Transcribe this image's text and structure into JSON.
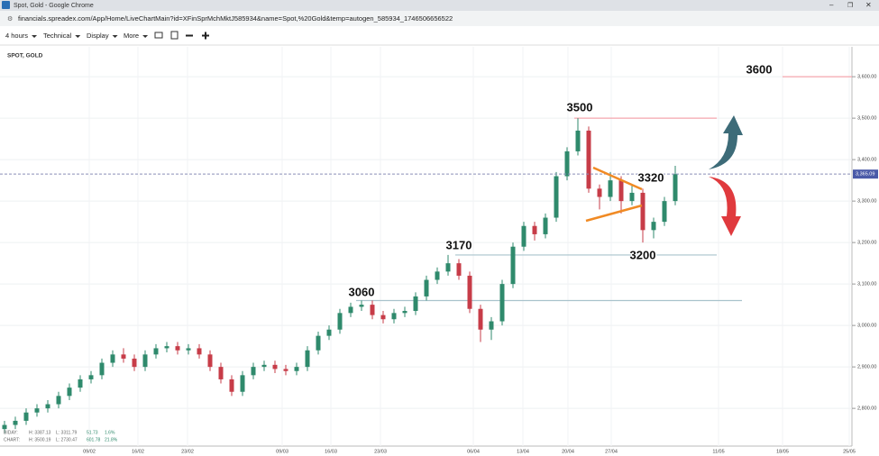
{
  "window": {
    "title": "Spot, Gold - Google Chrome",
    "url": "financials.spreadex.com/App/Home/LiveChartMain?id=XFinSprMchMktJ585934&name=Spot,%20Gold&temp=autogen_585934_1746506656522"
  },
  "toolbar": {
    "items": [
      "4 hours",
      "Technical",
      "Display",
      "More"
    ]
  },
  "chart": {
    "type": "candlestick",
    "label": "SPOT, GOLD",
    "ylim": [
      2709,
      3672
    ],
    "yticks": [
      {
        "value": 2800,
        "label": "2,800.00"
      },
      {
        "value": 2900,
        "label": "2,900.00"
      },
      {
        "value": 3000,
        "label": "3,000.00"
      },
      {
        "value": 3100,
        "label": "3,100.00"
      },
      {
        "value": 3200,
        "label": "3,200.00"
      },
      {
        "value": 3300,
        "label": "3,300.00"
      },
      {
        "value": 3400,
        "label": "3,400.00"
      },
      {
        "value": 3500,
        "label": "3,500.00"
      },
      {
        "value": 3600,
        "label": "3,600.00"
      }
    ],
    "xticks": [
      "09/02",
      "16/02",
      "23/02",
      "09/03",
      "16/03",
      "23/03",
      "06/04",
      "13/04",
      "20/04",
      "27/04",
      "11/05",
      "18/05",
      "25/05"
    ],
    "current_price": {
      "value": 3365.09,
      "label": "3,365.09"
    },
    "annotations": [
      3600,
      3500,
      3320,
      3200,
      3170,
      3060
    ],
    "info": [
      [
        "BIDAY:",
        "H: 3387.13",
        "L: 3311.79",
        "51.73",
        "1.6%"
      ],
      [
        "CHART:",
        "H: 3500.19",
        "L: 2730.47",
        "601.78",
        "21.8%"
      ]
    ],
    "candles": [
      [
        2750,
        2770,
        2740,
        2760
      ],
      [
        2760,
        2780,
        2750,
        2770
      ],
      [
        2770,
        2800,
        2760,
        2790
      ],
      [
        2790,
        2810,
        2780,
        2800
      ],
      [
        2800,
        2820,
        2790,
        2810
      ],
      [
        2810,
        2840,
        2800,
        2830
      ],
      [
        2830,
        2860,
        2820,
        2850
      ],
      [
        2850,
        2880,
        2840,
        2870
      ],
      [
        2870,
        2890,
        2860,
        2880
      ],
      [
        2880,
        2920,
        2870,
        2910
      ],
      [
        2910,
        2940,
        2900,
        2930
      ],
      [
        2930,
        2945,
        2910,
        2920
      ],
      [
        2920,
        2930,
        2890,
        2900
      ],
      [
        2900,
        2940,
        2890,
        2930
      ],
      [
        2930,
        2955,
        2920,
        2945
      ],
      [
        2945,
        2960,
        2935,
        2950
      ],
      [
        2950,
        2960,
        2930,
        2940
      ],
      [
        2940,
        2955,
        2930,
        2945
      ],
      [
        2945,
        2955,
        2920,
        2930
      ],
      [
        2930,
        2940,
        2890,
        2900
      ],
      [
        2900,
        2910,
        2860,
        2870
      ],
      [
        2870,
        2880,
        2830,
        2840
      ],
      [
        2840,
        2890,
        2830,
        2880
      ],
      [
        2880,
        2910,
        2870,
        2900
      ],
      [
        2900,
        2915,
        2890,
        2905
      ],
      [
        2905,
        2915,
        2885,
        2895
      ],
      [
        2895,
        2905,
        2880,
        2890
      ],
      [
        2890,
        2910,
        2880,
        2900
      ],
      [
        2900,
        2950,
        2890,
        2940
      ],
      [
        2940,
        2985,
        2930,
        2975
      ],
      [
        2975,
        3000,
        2965,
        2990
      ],
      [
        2990,
        3040,
        2980,
        3030
      ],
      [
        3030,
        3055,
        3020,
        3045
      ],
      [
        3045,
        3060,
        3035,
        3050
      ],
      [
        3050,
        3060,
        3015,
        3025
      ],
      [
        3025,
        3035,
        3005,
        3015
      ],
      [
        3015,
        3040,
        3005,
        3030
      ],
      [
        3030,
        3045,
        3020,
        3035
      ],
      [
        3035,
        3080,
        3025,
        3070
      ],
      [
        3070,
        3120,
        3060,
        3110
      ],
      [
        3110,
        3140,
        3100,
        3130
      ],
      [
        3130,
        3170,
        3120,
        3150
      ],
      [
        3150,
        3160,
        3110,
        3120
      ],
      [
        3120,
        3130,
        3030,
        3040
      ],
      [
        3040,
        3050,
        2960,
        2990
      ],
      [
        2990,
        3020,
        2965,
        3010
      ],
      [
        3010,
        3110,
        3000,
        3100
      ],
      [
        3100,
        3200,
        3090,
        3190
      ],
      [
        3190,
        3250,
        3180,
        3240
      ],
      [
        3240,
        3250,
        3205,
        3220
      ],
      [
        3220,
        3270,
        3210,
        3260
      ],
      [
        3260,
        3370,
        3250,
        3360
      ],
      [
        3360,
        3430,
        3350,
        3420
      ],
      [
        3420,
        3500,
        3410,
        3470
      ],
      [
        3470,
        3480,
        3320,
        3330
      ],
      [
        3330,
        3340,
        3280,
        3310
      ],
      [
        3310,
        3370,
        3300,
        3350
      ],
      [
        3350,
        3360,
        3270,
        3300
      ],
      [
        3300,
        3340,
        3290,
        3320
      ],
      [
        3320,
        3330,
        3200,
        3230
      ],
      [
        3230,
        3260,
        3210,
        3250
      ],
      [
        3250,
        3310,
        3240,
        3300
      ],
      [
        3300,
        3385,
        3290,
        3365
      ]
    ]
  }
}
